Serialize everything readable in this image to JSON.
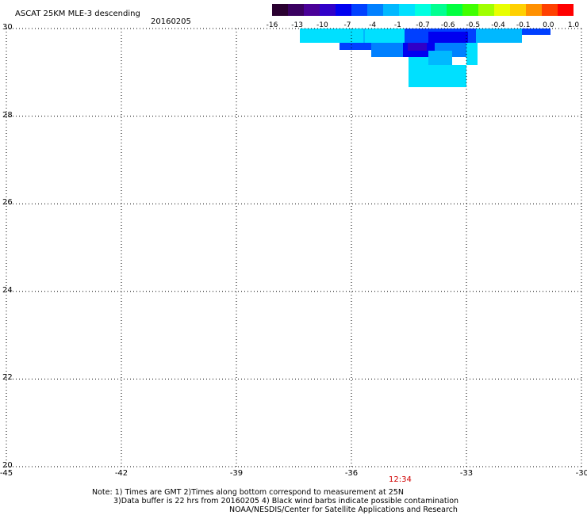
{
  "header": {
    "title": "ASCAT 25KM MLE-3 descending",
    "date": "20160205"
  },
  "colorbar": {
    "labels": [
      "-16",
      "-13",
      "-10",
      "-7",
      "-4",
      "-1",
      "-0.7",
      "-0.6",
      "-0.5",
      "-0.4",
      "-0.1",
      "0.0",
      "1.0"
    ],
    "colors": [
      "#2a0030",
      "#3a0060",
      "#4a0098",
      "#3000c8",
      "#0000f0",
      "#0040ff",
      "#0080ff",
      "#00b8ff",
      "#00e0ff",
      "#00ffe0",
      "#00ff90",
      "#00ff40",
      "#40ff00",
      "#a0ff00",
      "#e8ff00",
      "#ffd000",
      "#ff9000",
      "#ff4000",
      "#ff0000"
    ]
  },
  "map": {
    "lon_labels": [
      "-45",
      "-42",
      "-39",
      "-36",
      "-33",
      "-30"
    ],
    "lat_labels": [
      "30",
      "28",
      "26",
      "24",
      "22",
      "20"
    ],
    "time_label": "12:34",
    "time_color": "#d00000"
  },
  "notes": {
    "line1": "Note: 1) Times are GMT 2)Times along bottom correspond to measurement at 25N",
    "line2": "3)Data buffer is 22 hrs from 20160205 4) Black wind barbs indicate possible contamination",
    "line3": "NOAA/NESDIS/Center for Satellite Applications and Research"
  }
}
